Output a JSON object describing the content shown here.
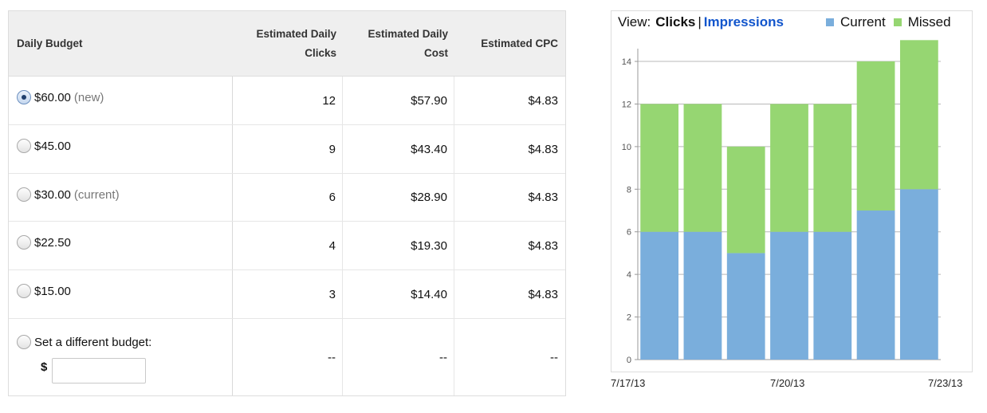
{
  "budget_table": {
    "columns": {
      "budget": "Daily Budget",
      "clicks": [
        "Estimated Daily",
        "Clicks"
      ],
      "cost": [
        "Estimated Daily",
        "Cost"
      ],
      "cpc": "Estimated CPC"
    },
    "rows": [
      {
        "amount": "$60.00",
        "note": "(new)",
        "clicks": "12",
        "cost": "$57.90",
        "cpc": "$4.83",
        "selected": true
      },
      {
        "amount": "$45.00",
        "note": "",
        "clicks": "9",
        "cost": "$43.40",
        "cpc": "$4.83",
        "selected": false
      },
      {
        "amount": "$30.00",
        "note": "(current)",
        "clicks": "6",
        "cost": "$28.90",
        "cpc": "$4.83",
        "selected": false
      },
      {
        "amount": "$22.50",
        "note": "",
        "clicks": "4",
        "cost": "$19.30",
        "cpc": "$4.83",
        "selected": false
      },
      {
        "amount": "$15.00",
        "note": "",
        "clicks": "3",
        "cost": "$14.40",
        "cpc": "$4.83",
        "selected": false
      }
    ],
    "custom": {
      "label": "Set a different budget:",
      "currency": "$",
      "value": "",
      "clicks": "--",
      "cost": "--",
      "cpc": "--"
    }
  },
  "chart": {
    "view_label": "View:",
    "view_options": [
      "Clicks",
      "Impressions"
    ],
    "view_selected": "Clicks",
    "view_separator": "|"
  },
  "chart_data": {
    "type": "bar",
    "stacked": true,
    "x_tick_labels": [
      "7/17/13",
      "7/20/13",
      "7/23/13"
    ],
    "categories": [
      "1",
      "2",
      "3",
      "4",
      "5",
      "6",
      "7"
    ],
    "series": [
      {
        "name": "Current",
        "color": "#7aaedc",
        "values": [
          6,
          6,
          5,
          6,
          6,
          7,
          8
        ]
      },
      {
        "name": "Missed",
        "color": "#96d672",
        "values": [
          6,
          6,
          5,
          6,
          6,
          7,
          7
        ]
      }
    ],
    "yticks": [
      0,
      2,
      4,
      6,
      8,
      10,
      12,
      14
    ],
    "ylim": [
      0,
      14.6
    ],
    "legend_position": "top-right",
    "grid": true
  }
}
